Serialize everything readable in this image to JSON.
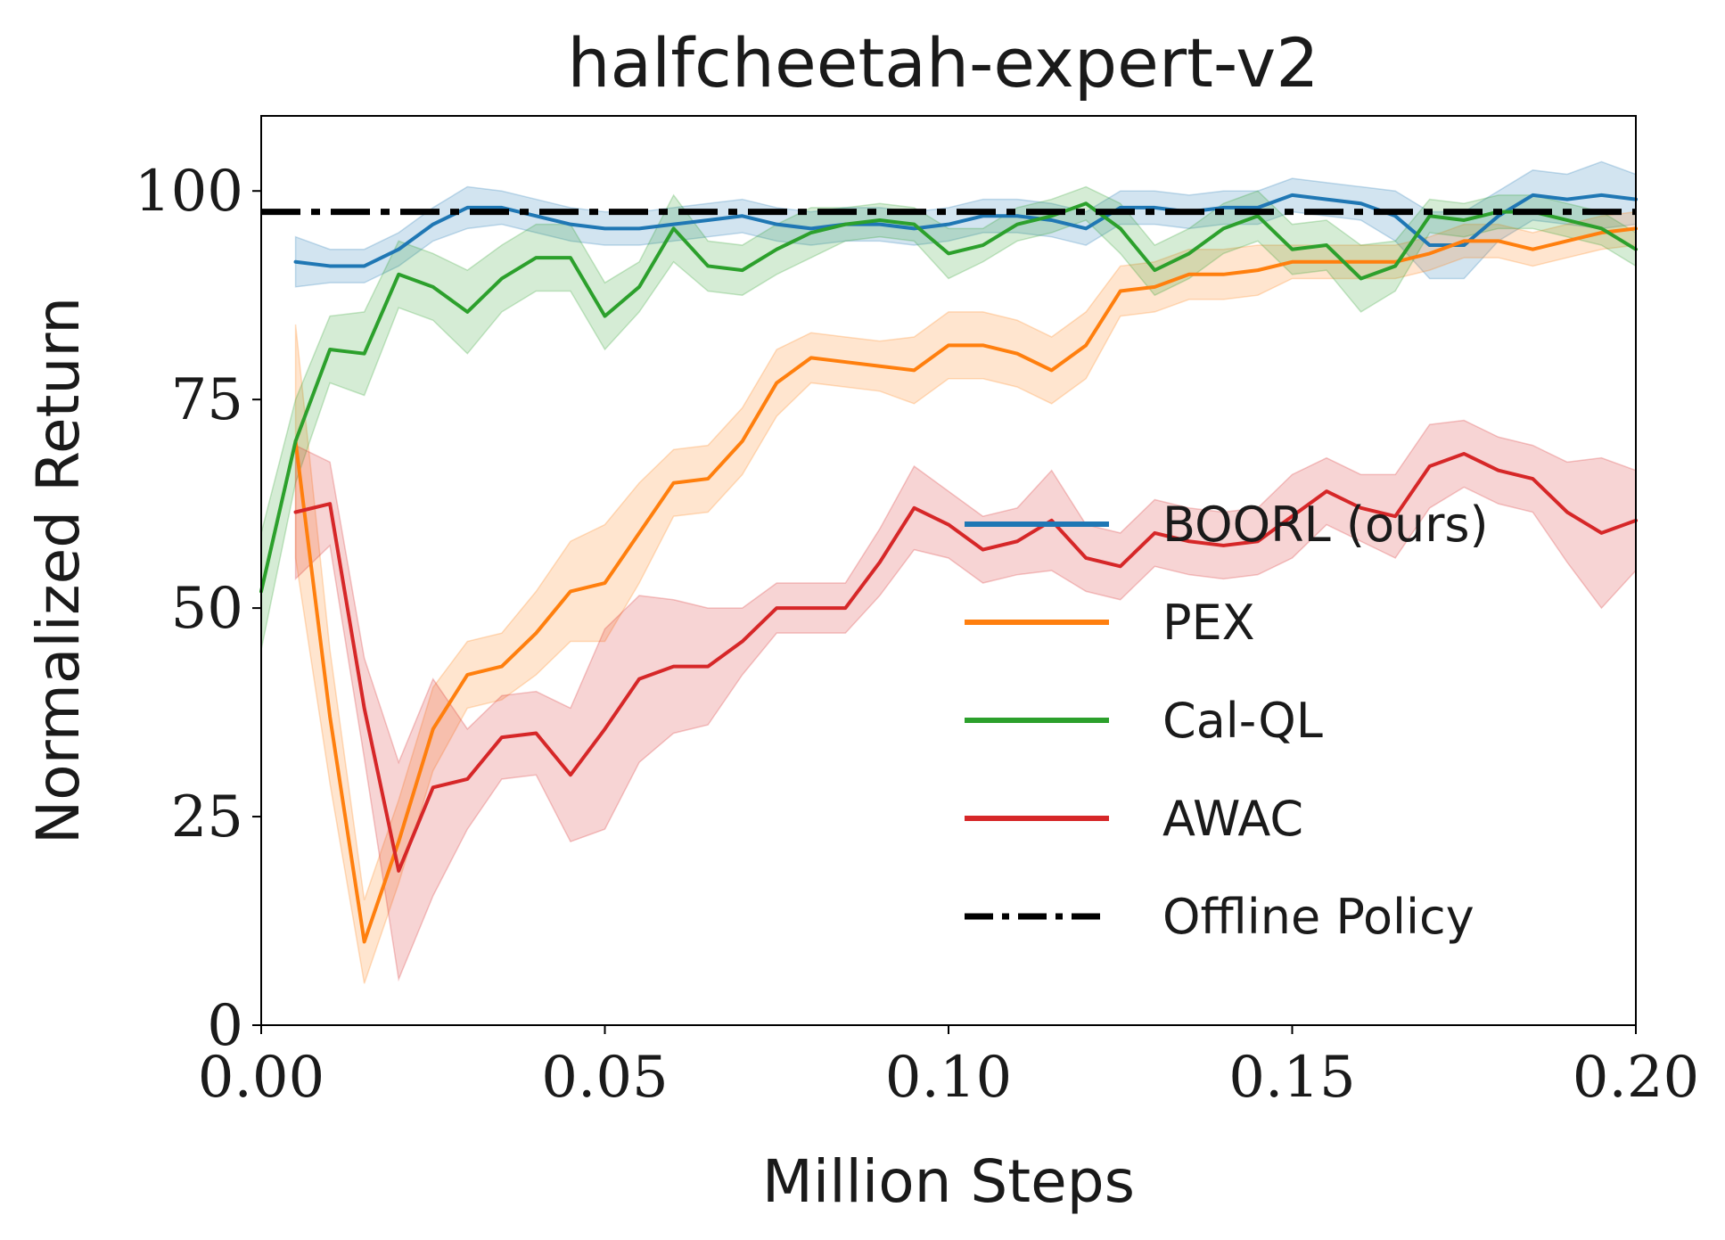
{
  "chart_data": {
    "type": "line",
    "title": "halfcheetah-expert-v2",
    "xlabel": "Million Steps",
    "ylabel": "Normalized Return",
    "xlim": [
      0.0,
      0.2
    ],
    "ylim": [
      0,
      109
    ],
    "x_ticks": [
      "0.00",
      "0.05",
      "0.10",
      "0.15",
      "0.20"
    ],
    "y_ticks": [
      "0",
      "25",
      "50",
      "75",
      "100"
    ],
    "legend_position": "right-center",
    "reference_line": {
      "name": "Offline Policy",
      "value": 97.5,
      "color": "#000000",
      "style": "dash-dot"
    },
    "series": [
      {
        "name": "BOORL (ours)",
        "color": "#1f77b4",
        "x": [
          0.005,
          0.01,
          0.015,
          0.02,
          0.025,
          0.03,
          0.035,
          0.04,
          0.045,
          0.05,
          0.055,
          0.06,
          0.065,
          0.07,
          0.075,
          0.08,
          0.085,
          0.09,
          0.095,
          0.1,
          0.105,
          0.11,
          0.115,
          0.12,
          0.125,
          0.13,
          0.135,
          0.14,
          0.145,
          0.15,
          0.155,
          0.16,
          0.165,
          0.17,
          0.175,
          0.18,
          0.185,
          0.19,
          0.195,
          0.2
        ],
        "values": [
          91.5,
          91,
          91,
          93,
          96,
          98,
          98,
          97,
          96,
          95.5,
          95.5,
          96,
          96.5,
          97,
          96,
          95.5,
          96,
          96,
          95.5,
          96,
          97,
          97,
          96.5,
          95.5,
          98,
          98,
          97.5,
          98,
          98,
          99.5,
          99,
          98.5,
          97,
          93.5,
          93.5,
          97,
          99.5,
          99,
          99.5,
          99
        ],
        "band": [
          3,
          2,
          2,
          2,
          2,
          2.5,
          2,
          2,
          2,
          2,
          2,
          2,
          2,
          2,
          2,
          2,
          2,
          2,
          2,
          2,
          2,
          2,
          2,
          2,
          2,
          2,
          2,
          2,
          2,
          2,
          2,
          2,
          3,
          4,
          4,
          3,
          3,
          3,
          4,
          3
        ]
      },
      {
        "name": "PEX",
        "color": "#ff7f0e",
        "x": [
          0.005,
          0.01,
          0.015,
          0.02,
          0.025,
          0.03,
          0.035,
          0.04,
          0.045,
          0.05,
          0.055,
          0.06,
          0.065,
          0.07,
          0.075,
          0.08,
          0.085,
          0.09,
          0.095,
          0.1,
          0.105,
          0.11,
          0.115,
          0.12,
          0.125,
          0.13,
          0.135,
          0.14,
          0.145,
          0.15,
          0.155,
          0.16,
          0.165,
          0.17,
          0.175,
          0.18,
          0.185,
          0.19,
          0.195,
          0.2
        ],
        "values": [
          70,
          37,
          10,
          22,
          35.5,
          42,
          43,
          47,
          52,
          53,
          59,
          65,
          65.5,
          70,
          77,
          80,
          79.5,
          79,
          78.5,
          81.5,
          81.5,
          80.5,
          78.5,
          81.5,
          88,
          88.5,
          90,
          90,
          90.5,
          91.5,
          91.5,
          91.5,
          91.5,
          92.5,
          94,
          94,
          93,
          94,
          95,
          95.5
        ],
        "band": [
          14,
          8,
          5,
          5,
          5,
          4,
          4,
          5,
          6,
          7,
          6,
          4,
          4,
          4,
          4,
          3,
          3,
          3,
          4,
          4,
          4,
          4,
          4,
          4,
          3,
          3,
          3,
          3,
          3,
          2,
          2,
          2,
          2,
          2,
          2,
          2,
          2,
          2,
          2,
          2
        ]
      },
      {
        "name": "Cal-QL",
        "color": "#2ca02c",
        "x": [
          0.0,
          0.005,
          0.01,
          0.015,
          0.02,
          0.025,
          0.03,
          0.035,
          0.04,
          0.045,
          0.05,
          0.055,
          0.06,
          0.065,
          0.07,
          0.075,
          0.08,
          0.085,
          0.09,
          0.095,
          0.1,
          0.105,
          0.11,
          0.115,
          0.12,
          0.125,
          0.13,
          0.135,
          0.14,
          0.145,
          0.15,
          0.155,
          0.16,
          0.165,
          0.17,
          0.175,
          0.18,
          0.185,
          0.19,
          0.195,
          0.2
        ],
        "values": [
          52,
          70,
          81,
          80.5,
          90,
          88.5,
          85.5,
          89.5,
          92,
          92,
          85,
          88.5,
          95.5,
          91,
          90.5,
          93,
          95,
          96,
          96.5,
          96,
          92.5,
          93.5,
          96,
          97,
          98.5,
          95.5,
          90.5,
          92.5,
          95.5,
          97,
          93,
          93.5,
          89.5,
          91,
          97,
          96.5,
          97.5,
          97.5,
          96.5,
          95.5,
          93
        ],
        "band": [
          7,
          5,
          4,
          5,
          4,
          4,
          5,
          4,
          4,
          4,
          4,
          3,
          4,
          3,
          3,
          3,
          3,
          2,
          2,
          2,
          3,
          2,
          2,
          2,
          2,
          3,
          3,
          3,
          3,
          3,
          3,
          3,
          4,
          3,
          2,
          2,
          2,
          2,
          2,
          2,
          2
        ]
      },
      {
        "name": "AWAC",
        "color": "#d62728",
        "x": [
          0.005,
          0.01,
          0.015,
          0.02,
          0.025,
          0.03,
          0.035,
          0.04,
          0.045,
          0.05,
          0.055,
          0.06,
          0.065,
          0.07,
          0.075,
          0.08,
          0.085,
          0.09,
          0.095,
          0.1,
          0.105,
          0.11,
          0.115,
          0.12,
          0.125,
          0.13,
          0.135,
          0.14,
          0.145,
          0.15,
          0.155,
          0.16,
          0.165,
          0.17,
          0.175,
          0.18,
          0.185,
          0.19,
          0.195,
          0.2
        ],
        "values": [
          61.5,
          62.5,
          38,
          18.5,
          28.5,
          29.5,
          34.5,
          35,
          30,
          35.5,
          41.5,
          43,
          43,
          46,
          50,
          50,
          50,
          55.5,
          62,
          60,
          57,
          58,
          60.5,
          56,
          55,
          59,
          58,
          57.5,
          58,
          61,
          64,
          62,
          61,
          67,
          68.5,
          66.5,
          65.5,
          61.5,
          59,
          60.5
        ],
        "band": [
          8,
          5,
          6,
          13,
          13,
          6,
          5,
          5,
          8,
          12,
          10,
          8,
          7,
          4,
          3,
          3,
          3,
          4,
          5,
          4,
          4,
          4,
          6,
          4,
          4,
          4,
          4,
          4,
          4,
          5,
          4,
          4,
          5,
          5,
          4,
          4,
          4,
          6,
          9,
          6
        ]
      }
    ]
  }
}
